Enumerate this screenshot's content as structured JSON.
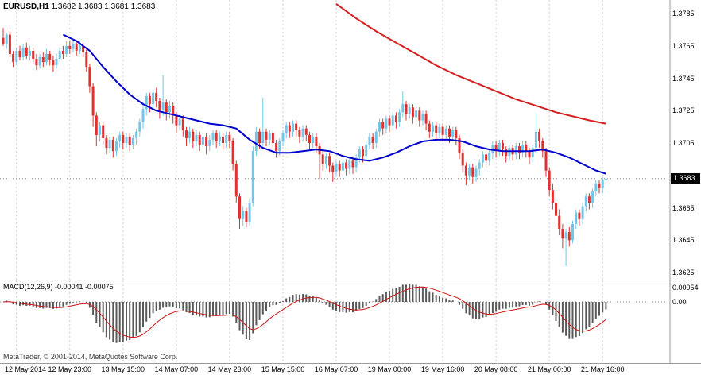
{
  "header": {
    "symbol": "EURUSD,H1",
    "quotes": "1.3682 1.3683 1.3681 1.3683"
  },
  "macd_panel": {
    "label": "MACD(12,26,9) -0.00041 -0.00075",
    "axis_ticks": [
      "0.00054",
      "0.00"
    ]
  },
  "footer": {
    "copyright": "MetaTrader, © 2001-2014, MetaQuotes Software Corp."
  },
  "price_scale": {
    "current_badge": "1.3683",
    "current_value": 1.3683
  },
  "colors": {
    "bull": "#74C6E8",
    "bear": "#E03030",
    "ma_fast": "#0000CD",
    "ma_slow": "#D42020",
    "macd_hist": "#5a5a5a",
    "macd_signal": "#C81414",
    "grid": "#cccccc",
    "border": "#9b9b9b",
    "price_line": "#8a8a8a",
    "badge_bg": "#000000",
    "badge_fg": "#ffffff"
  },
  "chart_data": {
    "type": "candlestick",
    "symbol": "EURUSD",
    "timeframe": "H1",
    "price_axis": {
      "min": 1.3625,
      "max": 1.3785,
      "tick_step": 0.002
    },
    "price_ticks": [
      "1.3785",
      "1.3765",
      "1.3745",
      "1.3725",
      "1.3705",
      "1.3665",
      "1.3645",
      "1.3625"
    ],
    "time_labels": [
      "12 May 2014",
      "12 May 23:00",
      "13 May 15:00",
      "14 May 07:00",
      "14 May 23:00",
      "15 May 15:00",
      "16 May 07:00",
      "19 May 00:00",
      "19 May 16:00",
      "20 May 08:00",
      "21 May 00:00",
      "21 May 16:00"
    ],
    "first_grid_bar": 4,
    "grid_every_bars": 16,
    "ohlc": [
      [
        1.377,
        1.3776,
        1.3765,
        1.3766
      ],
      [
        1.3766,
        1.3773,
        1.3763,
        1.3772
      ],
      [
        1.3772,
        1.3774,
        1.3758,
        1.376
      ],
      [
        1.376,
        1.3762,
        1.3752,
        1.3755
      ],
      [
        1.3755,
        1.3764,
        1.3753,
        1.3762
      ],
      [
        1.3762,
        1.3765,
        1.3756,
        1.3758
      ],
      [
        1.3758,
        1.3766,
        1.3756,
        1.3764
      ],
      [
        1.3764,
        1.3767,
        1.3757,
        1.3759
      ],
      [
        1.3759,
        1.3765,
        1.3756,
        1.3762
      ],
      [
        1.3762,
        1.3764,
        1.3754,
        1.3757
      ],
      [
        1.3757,
        1.376,
        1.375,
        1.3753
      ],
      [
        1.3753,
        1.376,
        1.3751,
        1.3758
      ],
      [
        1.3758,
        1.3761,
        1.3752,
        1.3755
      ],
      [
        1.3755,
        1.3763,
        1.3753,
        1.376
      ],
      [
        1.376,
        1.3762,
        1.3753,
        1.3756
      ],
      [
        1.3756,
        1.3759,
        1.3749,
        1.3753
      ],
      [
        1.3753,
        1.376,
        1.3751,
        1.3757
      ],
      [
        1.3757,
        1.3764,
        1.3755,
        1.3762
      ],
      [
        1.3762,
        1.3765,
        1.3757,
        1.376
      ],
      [
        1.376,
        1.3768,
        1.3758,
        1.3765
      ],
      [
        1.3765,
        1.3768,
        1.376,
        1.3763
      ],
      [
        1.3763,
        1.3769,
        1.3761,
        1.3766
      ],
      [
        1.3766,
        1.3768,
        1.3759,
        1.3762
      ],
      [
        1.3762,
        1.3768,
        1.376,
        1.3765
      ],
      [
        1.3765,
        1.3767,
        1.3758,
        1.3761
      ],
      [
        1.3761,
        1.3763,
        1.3749,
        1.3752
      ],
      [
        1.3752,
        1.3754,
        1.3736,
        1.374
      ],
      [
        1.374,
        1.3742,
        1.3715,
        1.3722
      ],
      [
        1.3722,
        1.3724,
        1.3703,
        1.371
      ],
      [
        1.371,
        1.3718,
        1.3706,
        1.3716
      ],
      [
        1.3716,
        1.3718,
        1.3704,
        1.3708
      ],
      [
        1.3708,
        1.371,
        1.3698,
        1.3702
      ],
      [
        1.3702,
        1.3709,
        1.3699,
        1.3707
      ],
      [
        1.3707,
        1.3709,
        1.3696,
        1.37
      ],
      [
        1.37,
        1.3708,
        1.3697,
        1.3706
      ],
      [
        1.3706,
        1.3712,
        1.3702,
        1.371
      ],
      [
        1.371,
        1.3712,
        1.3701,
        1.3705
      ],
      [
        1.3705,
        1.3711,
        1.3702,
        1.3709
      ],
      [
        1.3709,
        1.3711,
        1.37,
        1.3704
      ],
      [
        1.3704,
        1.371,
        1.3701,
        1.3708
      ],
      [
        1.3708,
        1.3714,
        1.3704,
        1.3712
      ],
      [
        1.3712,
        1.372,
        1.3709,
        1.3718
      ],
      [
        1.3718,
        1.373,
        1.3714,
        1.3726
      ],
      [
        1.3726,
        1.3736,
        1.3722,
        1.3734
      ],
      [
        1.3734,
        1.3736,
        1.3724,
        1.3729
      ],
      [
        1.3729,
        1.3738,
        1.3725,
        1.3736
      ],
      [
        1.3736,
        1.3739,
        1.3727,
        1.3731
      ],
      [
        1.3731,
        1.3733,
        1.372,
        1.3725
      ],
      [
        1.3725,
        1.3747,
        1.3722,
        1.373
      ],
      [
        1.373,
        1.3732,
        1.3719,
        1.3724
      ],
      [
        1.3724,
        1.3731,
        1.372,
        1.3728
      ],
      [
        1.3728,
        1.373,
        1.3717,
        1.3722
      ],
      [
        1.3722,
        1.3724,
        1.3711,
        1.3716
      ],
      [
        1.3716,
        1.3723,
        1.3713,
        1.372
      ],
      [
        1.372,
        1.3722,
        1.3709,
        1.3713
      ],
      [
        1.3713,
        1.3715,
        1.3703,
        1.3708
      ],
      [
        1.3708,
        1.3715,
        1.3705,
        1.3712
      ],
      [
        1.3712,
        1.3714,
        1.3702,
        1.3706
      ],
      [
        1.3706,
        1.3713,
        1.3703,
        1.371
      ],
      [
        1.371,
        1.3712,
        1.37,
        1.3704
      ],
      [
        1.3704,
        1.3711,
        1.3701,
        1.3709
      ],
      [
        1.3709,
        1.3711,
        1.3698,
        1.3703
      ],
      [
        1.3703,
        1.371,
        1.37,
        1.3707
      ],
      [
        1.3707,
        1.3713,
        1.3704,
        1.3711
      ],
      [
        1.3711,
        1.3713,
        1.3702,
        1.3706
      ],
      [
        1.3706,
        1.3712,
        1.3703,
        1.3709
      ],
      [
        1.3709,
        1.3711,
        1.3701,
        1.3705
      ],
      [
        1.3705,
        1.3712,
        1.3702,
        1.371
      ],
      [
        1.371,
        1.3712,
        1.3702,
        1.3706
      ],
      [
        1.3706,
        1.3708,
        1.3688,
        1.3692
      ],
      [
        1.3692,
        1.3694,
        1.3668,
        1.3672
      ],
      [
        1.3672,
        1.3674,
        1.3652,
        1.3658
      ],
      [
        1.3658,
        1.3666,
        1.3654,
        1.3663
      ],
      [
        1.3663,
        1.3665,
        1.3653,
        1.3656
      ],
      [
        1.3656,
        1.3671,
        1.3654,
        1.3668
      ],
      [
        1.3668,
        1.3703,
        1.3666,
        1.37
      ],
      [
        1.37,
        1.3715,
        1.3697,
        1.3712
      ],
      [
        1.3712,
        1.3714,
        1.3701,
        1.3705
      ],
      [
        1.3705,
        1.3733,
        1.3703,
        1.3712
      ],
      [
        1.3712,
        1.3714,
        1.3703,
        1.3707
      ],
      [
        1.3707,
        1.3713,
        1.3704,
        1.3711
      ],
      [
        1.3711,
        1.3713,
        1.3701,
        1.3705
      ],
      [
        1.3705,
        1.3707,
        1.3696,
        1.37
      ],
      [
        1.37,
        1.3708,
        1.3697,
        1.3706
      ],
      [
        1.3706,
        1.3713,
        1.3703,
        1.3711
      ],
      [
        1.3711,
        1.3718,
        1.3708,
        1.3716
      ],
      [
        1.3716,
        1.3718,
        1.3708,
        1.3712
      ],
      [
        1.3712,
        1.3719,
        1.3709,
        1.3717
      ],
      [
        1.3717,
        1.3719,
        1.3709,
        1.3713
      ],
      [
        1.3713,
        1.3715,
        1.3705,
        1.3709
      ],
      [
        1.3709,
        1.3716,
        1.3706,
        1.3714
      ],
      [
        1.3714,
        1.3716,
        1.3706,
        1.371
      ],
      [
        1.371,
        1.3712,
        1.3701,
        1.3705
      ],
      [
        1.3705,
        1.3711,
        1.3702,
        1.3709
      ],
      [
        1.3709,
        1.3711,
        1.3699,
        1.3703
      ],
      [
        1.3703,
        1.3705,
        1.3683,
        1.3698
      ],
      [
        1.3698,
        1.37,
        1.3688,
        1.3692
      ],
      [
        1.3692,
        1.3699,
        1.3689,
        1.3697
      ],
      [
        1.3697,
        1.3699,
        1.3687,
        1.3691
      ],
      [
        1.3691,
        1.3693,
        1.3681,
        1.3687
      ],
      [
        1.3687,
        1.3694,
        1.3684,
        1.3692
      ],
      [
        1.3692,
        1.3694,
        1.3684,
        1.3688
      ],
      [
        1.3688,
        1.3695,
        1.3685,
        1.3693
      ],
      [
        1.3693,
        1.3695,
        1.3685,
        1.3689
      ],
      [
        1.3689,
        1.3696,
        1.3686,
        1.3694
      ],
      [
        1.3694,
        1.3696,
        1.3686,
        1.369
      ],
      [
        1.369,
        1.3698,
        1.3687,
        1.3696
      ],
      [
        1.3696,
        1.3703,
        1.3693,
        1.3701
      ],
      [
        1.3701,
        1.3703,
        1.3693,
        1.3697
      ],
      [
        1.3697,
        1.3706,
        1.3694,
        1.3704
      ],
      [
        1.3704,
        1.3711,
        1.3701,
        1.3709
      ],
      [
        1.3709,
        1.3711,
        1.3701,
        1.3705
      ],
      [
        1.3705,
        1.3714,
        1.3702,
        1.3712
      ],
      [
        1.3712,
        1.372,
        1.3709,
        1.3718
      ],
      [
        1.3718,
        1.372,
        1.371,
        1.3714
      ],
      [
        1.3714,
        1.3722,
        1.3711,
        1.372
      ],
      [
        1.372,
        1.3722,
        1.3712,
        1.3716
      ],
      [
        1.3716,
        1.3724,
        1.3713,
        1.3722
      ],
      [
        1.3722,
        1.3724,
        1.3714,
        1.3718
      ],
      [
        1.3718,
        1.3726,
        1.3715,
        1.3724
      ],
      [
        1.3724,
        1.3737,
        1.3721,
        1.3729
      ],
      [
        1.3729,
        1.3731,
        1.3719,
        1.3723
      ],
      [
        1.3723,
        1.3729,
        1.372,
        1.3727
      ],
      [
        1.3727,
        1.3729,
        1.3717,
        1.3721
      ],
      [
        1.3721,
        1.3727,
        1.3718,
        1.3725
      ],
      [
        1.3725,
        1.3727,
        1.3715,
        1.3719
      ],
      [
        1.3719,
        1.3725,
        1.3716,
        1.3723
      ],
      [
        1.3723,
        1.3725,
        1.3713,
        1.3717
      ],
      [
        1.3717,
        1.3719,
        1.3708,
        1.3712
      ],
      [
        1.3712,
        1.3718,
        1.3709,
        1.3716
      ],
      [
        1.3716,
        1.3718,
        1.3707,
        1.3711
      ],
      [
        1.3711,
        1.3717,
        1.3708,
        1.3715
      ],
      [
        1.3715,
        1.3717,
        1.3706,
        1.371
      ],
      [
        1.371,
        1.3716,
        1.3707,
        1.3714
      ],
      [
        1.3714,
        1.3716,
        1.3705,
        1.3709
      ],
      [
        1.3709,
        1.3715,
        1.3706,
        1.3713
      ],
      [
        1.3713,
        1.3715,
        1.3704,
        1.3708
      ],
      [
        1.3708,
        1.371,
        1.3695,
        1.3699
      ],
      [
        1.3699,
        1.3701,
        1.3687,
        1.3691
      ],
      [
        1.3691,
        1.3693,
        1.3679,
        1.3685
      ],
      [
        1.3685,
        1.3692,
        1.3682,
        1.369
      ],
      [
        1.369,
        1.3692,
        1.368,
        1.3684
      ],
      [
        1.3684,
        1.3691,
        1.3681,
        1.3689
      ],
      [
        1.3689,
        1.3695,
        1.3685,
        1.3693
      ],
      [
        1.3693,
        1.37,
        1.369,
        1.3698
      ],
      [
        1.3698,
        1.37,
        1.369,
        1.3694
      ],
      [
        1.3694,
        1.3701,
        1.3691,
        1.3699
      ],
      [
        1.3699,
        1.3706,
        1.3695,
        1.3704
      ],
      [
        1.3704,
        1.3706,
        1.3696,
        1.37
      ],
      [
        1.37,
        1.3707,
        1.3697,
        1.3705
      ],
      [
        1.3705,
        1.3707,
        1.3697,
        1.3701
      ],
      [
        1.3701,
        1.3703,
        1.3693,
        1.3697
      ],
      [
        1.3697,
        1.3704,
        1.3694,
        1.3702
      ],
      [
        1.3702,
        1.3704,
        1.3694,
        1.3698
      ],
      [
        1.3698,
        1.3705,
        1.3695,
        1.3703
      ],
      [
        1.3703,
        1.3705,
        1.3695,
        1.3699
      ],
      [
        1.3699,
        1.3706,
        1.3696,
        1.3704
      ],
      [
        1.3704,
        1.3706,
        1.3696,
        1.37
      ],
      [
        1.37,
        1.3702,
        1.3692,
        1.3696
      ],
      [
        1.3696,
        1.3704,
        1.3693,
        1.3702
      ],
      [
        1.3702,
        1.3723,
        1.3699,
        1.3712
      ],
      [
        1.3712,
        1.3714,
        1.3702,
        1.3706
      ],
      [
        1.3706,
        1.3708,
        1.3696,
        1.37
      ],
      [
        1.37,
        1.3702,
        1.3684,
        1.3688
      ],
      [
        1.3688,
        1.369,
        1.3672,
        1.3676
      ],
      [
        1.3676,
        1.368,
        1.3664,
        1.3668
      ],
      [
        1.3668,
        1.367,
        1.3655,
        1.366
      ],
      [
        1.366,
        1.3664,
        1.3648,
        1.3652
      ],
      [
        1.3652,
        1.3655,
        1.364,
        1.3646
      ],
      [
        1.3646,
        1.3652,
        1.3629,
        1.365
      ],
      [
        1.365,
        1.3653,
        1.3641,
        1.3645
      ],
      [
        1.3645,
        1.3657,
        1.3643,
        1.3655
      ],
      [
        1.3655,
        1.3664,
        1.3652,
        1.3662
      ],
      [
        1.3662,
        1.3664,
        1.3654,
        1.3658
      ],
      [
        1.3658,
        1.3668,
        1.3655,
        1.3666
      ],
      [
        1.3666,
        1.3674,
        1.3663,
        1.3672
      ],
      [
        1.3672,
        1.3674,
        1.3664,
        1.3668
      ],
      [
        1.3668,
        1.3677,
        1.3665,
        1.3675
      ],
      [
        1.3675,
        1.3682,
        1.3672,
        1.368
      ],
      [
        1.368,
        1.3682,
        1.3674,
        1.3677
      ],
      [
        1.3677,
        1.3684,
        1.3674,
        1.3682
      ],
      [
        1.3682,
        1.3683,
        1.3681,
        1.3683
      ]
    ],
    "ma_fast_points": [
      [
        18,
        1.3772
      ],
      [
        22,
        1.3768
      ],
      [
        26,
        1.3762
      ],
      [
        30,
        1.3752
      ],
      [
        34,
        1.3743
      ],
      [
        38,
        1.3735
      ],
      [
        42,
        1.3729
      ],
      [
        46,
        1.3725
      ],
      [
        50,
        1.3723
      ],
      [
        54,
        1.3721
      ],
      [
        58,
        1.3719
      ],
      [
        62,
        1.3717
      ],
      [
        66,
        1.3716
      ],
      [
        70,
        1.3714
      ],
      [
        74,
        1.3707
      ],
      [
        78,
        1.3702
      ],
      [
        82,
        1.3699
      ],
      [
        86,
        1.3699
      ],
      [
        90,
        1.37
      ],
      [
        94,
        1.3701
      ],
      [
        98,
        1.37
      ],
      [
        102,
        1.3697
      ],
      [
        106,
        1.3695
      ],
      [
        110,
        1.3694
      ],
      [
        114,
        1.3696
      ],
      [
        118,
        1.3699
      ],
      [
        122,
        1.3703
      ],
      [
        126,
        1.3706
      ],
      [
        130,
        1.3707
      ],
      [
        134,
        1.3707
      ],
      [
        138,
        1.3706
      ],
      [
        142,
        1.3703
      ],
      [
        146,
        1.3701
      ],
      [
        150,
        1.37
      ],
      [
        154,
        1.37
      ],
      [
        158,
        1.37
      ],
      [
        162,
        1.3701
      ],
      [
        166,
        1.3699
      ],
      [
        170,
        1.3696
      ],
      [
        174,
        1.3692
      ],
      [
        178,
        1.3688
      ],
      [
        181,
        1.3686
      ]
    ],
    "ma_slow_points": [
      [
        100,
        1.3791
      ],
      [
        106,
        1.3782
      ],
      [
        112,
        1.3774
      ],
      [
        118,
        1.3767
      ],
      [
        124,
        1.376
      ],
      [
        130,
        1.3753
      ],
      [
        136,
        1.3747
      ],
      [
        142,
        1.3742
      ],
      [
        148,
        1.3737
      ],
      [
        154,
        1.3732
      ],
      [
        160,
        1.3728
      ],
      [
        166,
        1.3724
      ],
      [
        172,
        1.3721
      ],
      [
        176,
        1.3719
      ],
      [
        181,
        1.3717
      ]
    ],
    "macd": {
      "fast": 12,
      "slow": 26,
      "signal": 9,
      "current_main": -0.00041,
      "current_signal": -0.00075,
      "axis_max": 0.00054
    }
  }
}
